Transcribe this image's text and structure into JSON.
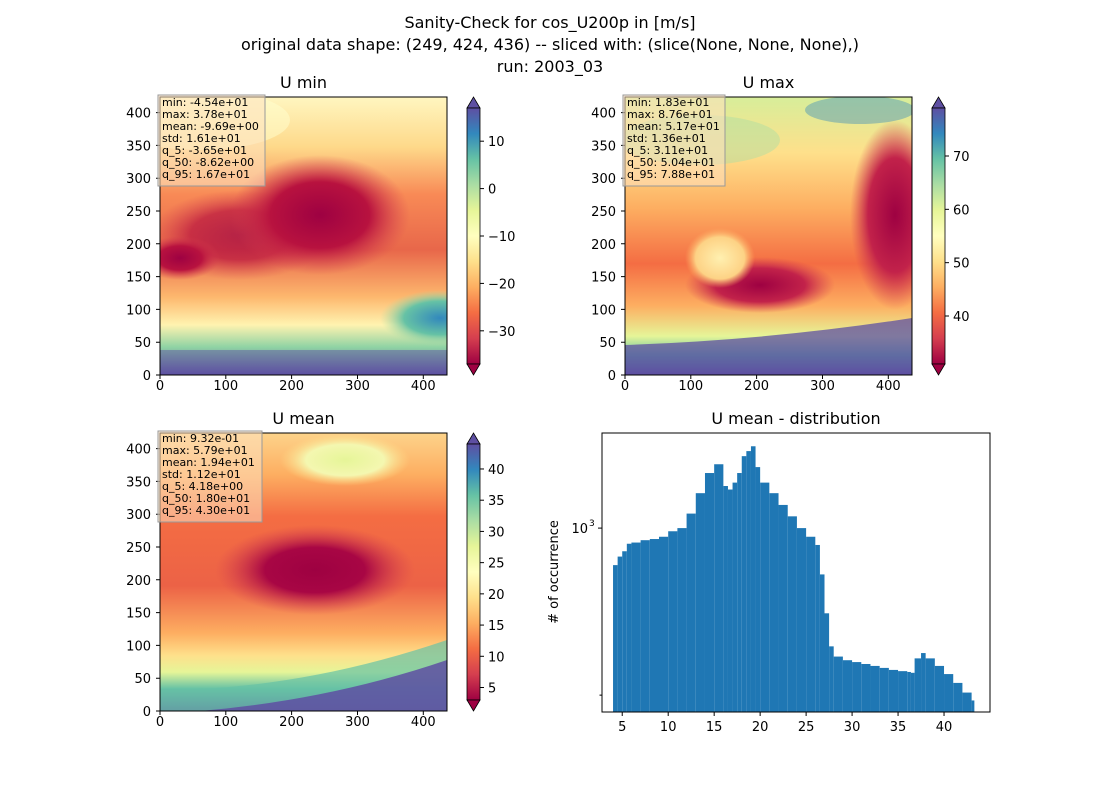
{
  "figure": {
    "title_lines": [
      "Sanity-Check for cos_U200p in [m/s]",
      "original data shape: (249, 424, 436) -- sliced with: (slice(None, None, None),)",
      "run: 2003_03"
    ]
  },
  "colors": {
    "histogram_bar": "#1f77b4",
    "colormap": "Spectral",
    "stats_box": "#fde0c0"
  },
  "chart_data": [
    {
      "type": "heatmap",
      "title": "U min",
      "xlim": [
        0,
        436
      ],
      "ylim": [
        0,
        424
      ],
      "xticks": [
        "0",
        "100",
        "200",
        "300",
        "400"
      ],
      "yticks": [
        "0",
        "50",
        "100",
        "150",
        "200",
        "250",
        "300",
        "350",
        "400"
      ],
      "colorbar": {
        "range": [
          -37,
          17
        ],
        "ticks": [
          "10",
          "0",
          "−10",
          "−20",
          "−30"
        ],
        "tick_values": [
          10,
          0,
          -10,
          -20,
          -30
        ],
        "extend": "both"
      },
      "stats": [
        "min: -4.54e+01",
        "max: 3.78e+01",
        "mean: -9.69e+00",
        "std: 1.61e+01",
        "q_5: -3.65e+01",
        "q_50: -8.62e+00",
        "q_95: 1.67e+01"
      ]
    },
    {
      "type": "heatmap",
      "title": "U max",
      "xlim": [
        0,
        436
      ],
      "ylim": [
        0,
        424
      ],
      "xticks": [
        "0",
        "100",
        "200",
        "300",
        "400"
      ],
      "yticks": [
        "0",
        "50",
        "100",
        "150",
        "200",
        "250",
        "300",
        "350",
        "400"
      ],
      "colorbar": {
        "range": [
          31,
          79
        ],
        "ticks": [
          "70",
          "60",
          "50",
          "40"
        ],
        "tick_values": [
          70,
          60,
          50,
          40
        ],
        "extend": "both"
      },
      "stats": [
        "min: 1.83e+01",
        "max: 8.76e+01",
        "mean: 5.17e+01",
        "std: 1.36e+01",
        "q_5: 3.11e+01",
        "q_50: 5.04e+01",
        "q_95: 7.88e+01"
      ]
    },
    {
      "type": "heatmap",
      "title": "U mean",
      "xlim": [
        0,
        436
      ],
      "ylim": [
        0,
        424
      ],
      "xticks": [
        "0",
        "100",
        "200",
        "300",
        "400"
      ],
      "yticks": [
        "0",
        "50",
        "100",
        "150",
        "200",
        "250",
        "300",
        "350",
        "400"
      ],
      "colorbar": {
        "range": [
          3,
          44
        ],
        "ticks": [
          "40",
          "35",
          "30",
          "25",
          "20",
          "15",
          "10",
          "5"
        ],
        "tick_values": [
          40,
          35,
          30,
          25,
          20,
          15,
          10,
          5
        ],
        "extend": "both"
      },
      "stats": [
        "min: 9.32e-01",
        "max: 5.79e+01",
        "mean: 1.94e+01",
        "std: 1.12e+01",
        "q_5: 4.18e+00",
        "q_50: 1.80e+01",
        "q_95: 4.30e+01"
      ]
    },
    {
      "type": "bar",
      "title": "U mean - distribution",
      "ylabel": "# of occurrence",
      "yscale": "log",
      "xlim": [
        2.8,
        45
      ],
      "ylim": [
        170,
        2500
      ],
      "xticks": [
        "5",
        "10",
        "15",
        "20",
        "25",
        "30",
        "35",
        "40"
      ],
      "xtick_values": [
        5,
        10,
        15,
        20,
        25,
        30,
        35,
        40
      ],
      "ytick_major": [
        {
          "value": 1000,
          "label": "10",
          "exp": "3"
        }
      ],
      "ytick_minor": [
        200
      ],
      "x": [
        4.0,
        4.5,
        5.0,
        5.5,
        6.0,
        7.0,
        8.0,
        9.0,
        10.0,
        11.0,
        12.0,
        13.0,
        14.0,
        15.0,
        16.0,
        16.5,
        17.0,
        17.5,
        18.0,
        18.5,
        19.0,
        19.5,
        20.0,
        21.0,
        22.0,
        23.0,
        24.0,
        25.0,
        26.0,
        26.5,
        27.0,
        27.5,
        28.0,
        29.0,
        30.0,
        31.0,
        32.0,
        33.0,
        34.0,
        35.0,
        36.0,
        36.4,
        36.8,
        37.5,
        38.0,
        39.0,
        40.0,
        41.0,
        42.0,
        43.0
      ],
      "values": [
        700,
        760,
        800,
        860,
        870,
        890,
        900,
        920,
        970,
        1000,
        1150,
        1400,
        1700,
        1850,
        1500,
        1450,
        1550,
        1700,
        2000,
        2100,
        2200,
        1800,
        1550,
        1400,
        1250,
        1120,
        1000,
        920,
        850,
        640,
        440,
        320,
        290,
        280,
        275,
        270,
        265,
        260,
        255,
        252,
        250,
        248,
        285,
        300,
        285,
        265,
        245,
        225,
        205,
        190
      ]
    }
  ]
}
